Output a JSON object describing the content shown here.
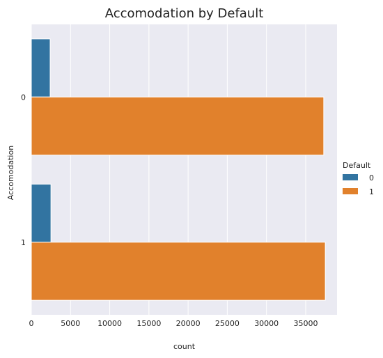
{
  "chart_data": {
    "type": "bar",
    "orientation": "horizontal",
    "title": "Accomodation by Default",
    "xlabel": "count",
    "ylabel": "Accomodation",
    "categories": [
      "0",
      "1"
    ],
    "xlim": [
      0,
      39000
    ],
    "x_ticks": [
      "0",
      "5000",
      "10000",
      "15000",
      "20000",
      "25000",
      "30000",
      "35000"
    ],
    "x_tick_values": [
      0,
      5000,
      10000,
      15000,
      20000,
      25000,
      30000,
      35000
    ],
    "grid": true,
    "legend_title": "Default",
    "legend_position": "right",
    "series": [
      {
        "name": "0",
        "color": "#3274a1",
        "values": [
          2400,
          2500
        ]
      },
      {
        "name": "1",
        "color": "#e1812c",
        "values": [
          37300,
          37500
        ]
      }
    ]
  }
}
